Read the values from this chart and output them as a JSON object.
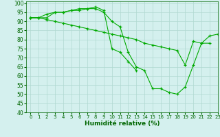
{
  "title": "",
  "xlabel": "Humidité relative (%)",
  "ylabel": "",
  "xlim": [
    -0.5,
    23
  ],
  "ylim": [
    40,
    101
  ],
  "xticks": [
    0,
    1,
    2,
    3,
    4,
    5,
    6,
    7,
    8,
    9,
    10,
    11,
    12,
    13,
    14,
    15,
    16,
    17,
    18,
    19,
    20,
    21,
    22,
    23
  ],
  "yticks": [
    40,
    45,
    50,
    55,
    60,
    65,
    70,
    75,
    80,
    85,
    90,
    95,
    100
  ],
  "background_color": "#d4f0ee",
  "grid_color": "#b0d8d0",
  "line_color": "#00aa00",
  "series": [
    {
      "x": [
        0,
        1,
        2,
        3,
        4,
        5,
        6,
        7,
        8,
        9,
        10,
        11,
        12,
        13
      ],
      "y": [
        92,
        92,
        92,
        95,
        95,
        96,
        97,
        97,
        98,
        96,
        75,
        73,
        68,
        63
      ]
    },
    {
      "x": [
        0,
        1,
        2,
        3,
        4,
        5,
        6,
        7,
        8,
        9,
        10,
        11,
        12,
        13,
        14,
        15,
        16,
        17,
        18,
        19,
        20,
        21,
        22,
        23
      ],
      "y": [
        92,
        92,
        91,
        90,
        89,
        88,
        87,
        86,
        85,
        84,
        83,
        82,
        81,
        80,
        78,
        77,
        76,
        75,
        74,
        66,
        79,
        78,
        82,
        83
      ]
    },
    {
      "x": [
        0,
        1,
        2,
        3,
        4,
        5,
        6,
        7,
        8,
        9,
        10,
        11,
        12,
        13,
        14,
        15,
        16,
        17,
        18,
        19,
        20,
        21,
        22
      ],
      "y": [
        92,
        92,
        94,
        95,
        95,
        96,
        96,
        97,
        97,
        95,
        90,
        87,
        73,
        65,
        63,
        53,
        53,
        51,
        50,
        54,
        66,
        78,
        78
      ]
    }
  ]
}
